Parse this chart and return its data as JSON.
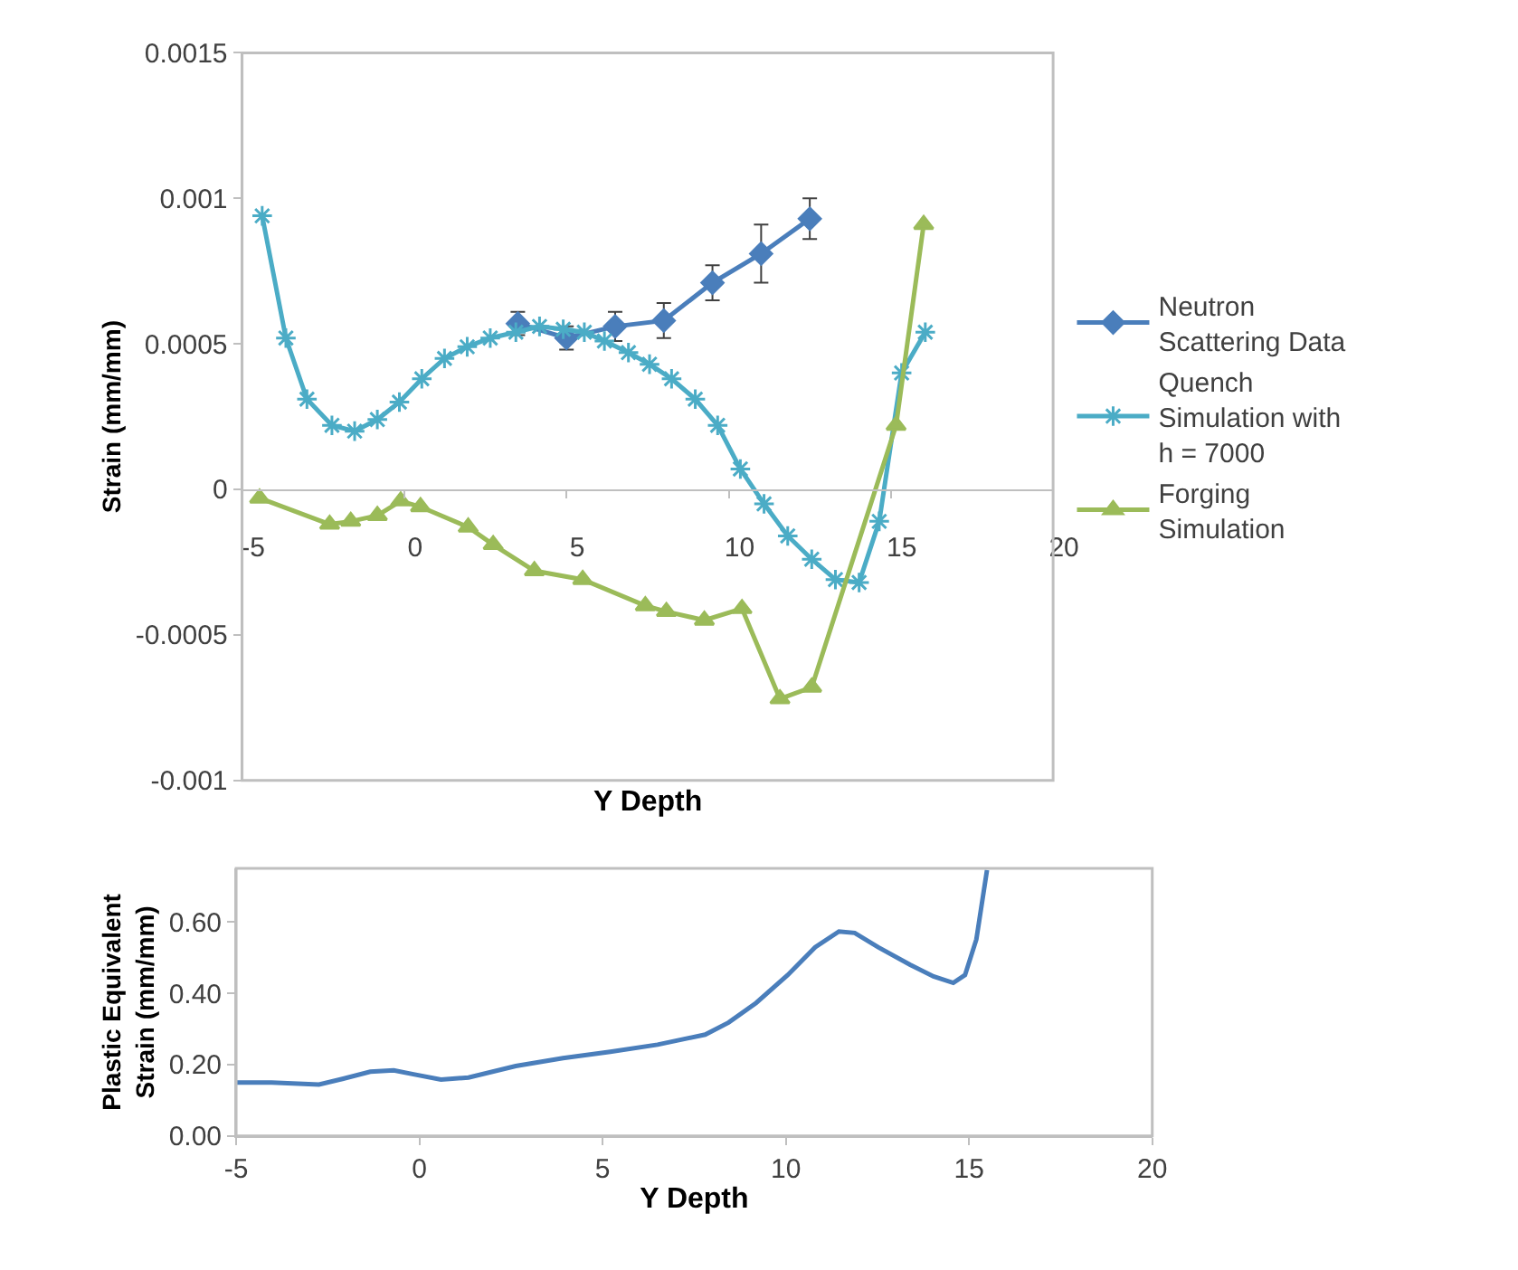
{
  "chart_data": [
    {
      "type": "line",
      "xlabel": "Y Depth",
      "ylabel": "Strain (mm/mm)",
      "xlim": [
        -5,
        20
      ],
      "ylim": [
        -0.001,
        0.0015
      ],
      "xticks": [
        -5,
        0,
        5,
        10,
        15,
        20
      ],
      "yticks": [
        -0.001,
        -0.0005,
        0,
        0.0005,
        0.001,
        0.0015
      ],
      "legend": "right",
      "grid": false,
      "series": [
        {
          "name": "Neutron Scattering Data",
          "color": "#4a7ebb",
          "marker": "diamond",
          "x": [
            3.5,
            5,
            6.5,
            8,
            9.5,
            11,
            12.5
          ],
          "values": [
            0.00057,
            0.00052,
            0.00056,
            0.00058,
            0.00071,
            0.00081,
            0.00093
          ],
          "errors": [
            4e-05,
            4e-05,
            5e-05,
            6e-05,
            6e-05,
            0.0001,
            7e-05
          ]
        },
        {
          "name": "Quench Simulation with h = 7000",
          "color": "#4bacc6",
          "marker": "cross",
          "x": [
            -4.38,
            -3.65,
            -3.0,
            -2.23,
            -1.53,
            -0.83,
            -0.15,
            0.54,
            1.24,
            1.94,
            2.65,
            3.44,
            4.17,
            4.9,
            5.55,
            6.17,
            6.91,
            7.56,
            8.24,
            8.97,
            9.66,
            10.36,
            11.09,
            11.82,
            12.56,
            13.29,
            14.02,
            14.64,
            15.33,
            16.06
          ],
          "values": [
            0.00094,
            0.00052,
            0.00031,
            0.00022,
            0.0002,
            0.00024,
            0.0003,
            0.00038,
            0.00045,
            0.00049,
            0.00052,
            0.00054,
            0.00056,
            0.00055,
            0.00054,
            0.00051,
            0.00047,
            0.00043,
            0.00038,
            0.00031,
            0.00022,
            7e-05,
            -5e-05,
            -0.00016,
            -0.00024,
            -0.00031,
            -0.00032,
            -0.00011,
            0.0004,
            0.00054
          ]
        },
        {
          "name": "Forging Simulation",
          "color": "#9bbb59",
          "marker": "triangle",
          "x": [
            -4.46,
            -2.3,
            -1.65,
            -0.83,
            -0.11,
            0.5,
            1.97,
            2.74,
            4.01,
            5.5,
            7.43,
            8.08,
            9.25,
            10.41,
            11.58,
            12.56,
            15.16,
            16.01
          ],
          "values": [
            -3e-05,
            -0.00012,
            -0.00011,
            -9e-05,
            -4e-05,
            -6e-05,
            -0.00013,
            -0.00019,
            -0.00028,
            -0.00031,
            -0.0004,
            -0.00042,
            -0.00045,
            -0.00041,
            -0.00072,
            -0.00068,
            0.00022,
            0.00091
          ]
        }
      ]
    },
    {
      "type": "line",
      "xlabel": "Y Depth",
      "ylabel": "Plastic Equivalent Strain (mm/mm)",
      "xlim": [
        -5,
        20
      ],
      "ylim": [
        0,
        0.75
      ],
      "xticks": [
        -5,
        0,
        5,
        10,
        15,
        20
      ],
      "yticks": [
        {
          "value": 0,
          "label": "0.00"
        },
        {
          "value": 0.2,
          "label": "0.20"
        },
        {
          "value": 0.4,
          "label": "0.40"
        },
        {
          "value": 0.6,
          "label": "0.60"
        }
      ],
      "legend": false,
      "grid": false,
      "series": [
        {
          "color": "#4a7ebb",
          "x": [
            -5,
            -4.03,
            -2.74,
            -2.1,
            -1.34,
            -0.7,
            -0.16,
            0.59,
            1.34,
            2.63,
            3.92,
            5.21,
            6.5,
            7.8,
            8.44,
            9.19,
            10.05,
            10.8,
            11.45,
            11.88,
            12.52,
            13.39,
            14.03,
            14.57,
            14.89,
            15.2,
            15.49
          ],
          "values": [
            0.15,
            0.15,
            0.144,
            0.16,
            0.18,
            0.184,
            0.173,
            0.158,
            0.164,
            0.196,
            0.218,
            0.236,
            0.256,
            0.284,
            0.318,
            0.373,
            0.451,
            0.529,
            0.573,
            0.569,
            0.529,
            0.48,
            0.447,
            0.429,
            0.451,
            0.551,
            0.745
          ]
        }
      ]
    }
  ]
}
